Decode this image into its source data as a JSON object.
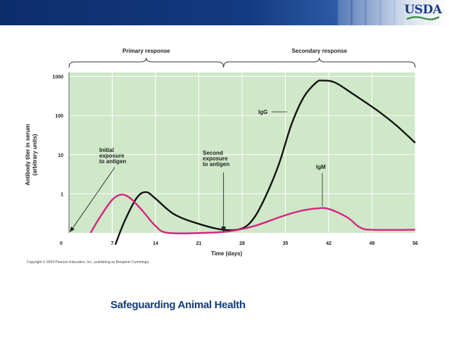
{
  "header": {
    "logo_text": "USDA"
  },
  "chart_data": {
    "type": "line",
    "x_unit_label": "Time (days)",
    "y_label_line1": "Antibody titer in serum",
    "y_label_line2": "(arbitrary units)",
    "y_scale": "log",
    "y_ticks": [
      "1",
      "10",
      "100",
      "1000"
    ],
    "y_tick_values": [
      1,
      10,
      100,
      1000
    ],
    "x_ticks": [
      "0",
      "7",
      "14",
      "21",
      "28",
      "35",
      "42",
      "49",
      "56"
    ],
    "x_tick_values": [
      0,
      7,
      14,
      21,
      28,
      35,
      42,
      49,
      56
    ],
    "xlim": [
      0,
      56
    ],
    "ylim_decades": [
      -1,
      3.1
    ],
    "grid": true,
    "background_color": "#cfe8c8",
    "phases": [
      {
        "label": "Primary response",
        "x_range": [
          0,
          25
        ]
      },
      {
        "label": "Secondary response",
        "x_range": [
          25,
          56
        ]
      }
    ],
    "annotations": [
      {
        "lines": [
          "Initial",
          "exposure",
          "to antigen"
        ],
        "points_to_x": 0
      },
      {
        "lines": [
          "Second",
          "exposure",
          "to antigen"
        ],
        "points_to_x": 25
      }
    ],
    "series": [
      {
        "name": "IgG",
        "color": "#111111",
        "points": [
          [
            7.5,
            0.05
          ],
          [
            9,
            0.2
          ],
          [
            11,
            0.8
          ],
          [
            12.5,
            1.1
          ],
          [
            14,
            0.75
          ],
          [
            17,
            0.3
          ],
          [
            21,
            0.17
          ],
          [
            25,
            0.12
          ],
          [
            28,
            0.13
          ],
          [
            30,
            0.25
          ],
          [
            32,
            1.0
          ],
          [
            34,
            6
          ],
          [
            36,
            60
          ],
          [
            38,
            300
          ],
          [
            40,
            700
          ],
          [
            41,
            780
          ],
          [
            43,
            700
          ],
          [
            46,
            350
          ],
          [
            50,
            130
          ],
          [
            53,
            55
          ],
          [
            56,
            20
          ]
        ]
      },
      {
        "name": "IgM",
        "color": "#d6237f",
        "points": [
          [
            3.5,
            0.1
          ],
          [
            5,
            0.25
          ],
          [
            7,
            0.7
          ],
          [
            8.5,
            0.95
          ],
          [
            10,
            0.75
          ],
          [
            12,
            0.35
          ],
          [
            14,
            0.15
          ],
          [
            16,
            0.1
          ],
          [
            22,
            0.1
          ],
          [
            26,
            0.11
          ],
          [
            30,
            0.15
          ],
          [
            34,
            0.25
          ],
          [
            37,
            0.35
          ],
          [
            40,
            0.42
          ],
          [
            42,
            0.41
          ],
          [
            45,
            0.25
          ],
          [
            47,
            0.14
          ],
          [
            49,
            0.12
          ],
          [
            56,
            0.12
          ]
        ]
      }
    ]
  },
  "copyright": "Copyright © 2004 Pearson Education, Inc., publishing as Benjamin Cummings.",
  "footer": {
    "title": "Safeguarding Animal Health"
  }
}
